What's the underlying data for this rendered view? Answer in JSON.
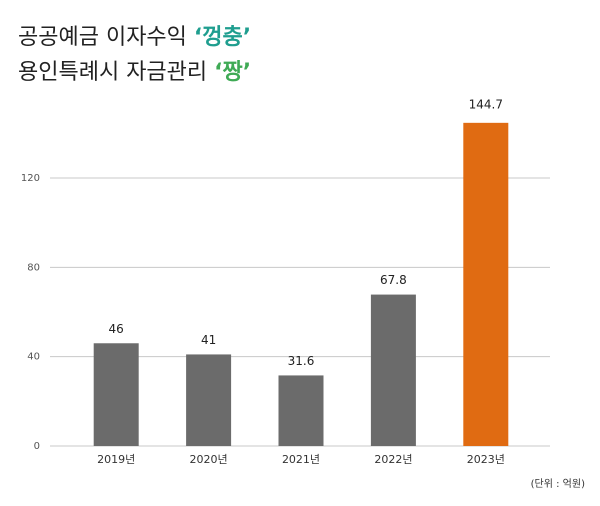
{
  "chart_data": {
    "type": "bar",
    "title_lines": [
      {
        "text": "공공예금 이자수익",
        "highlight": "‘껑충’",
        "highlight_color": "#1f9e8f"
      },
      {
        "text": "용인특례시 자금관리",
        "highlight": "‘짱’",
        "highlight_color": "#3faa55"
      }
    ],
    "unit_note": "(단위 : 억원)",
    "categories": [
      "2019년",
      "2020년",
      "2021년",
      "2022년",
      "2023년"
    ],
    "values": [
      46,
      41,
      31.6,
      67.8,
      144.7
    ],
    "colors": [
      "#6b6b6b",
      "#6b6b6b",
      "#6b6b6b",
      "#6b6b6b",
      "#e06b12"
    ],
    "ylim": [
      0,
      150
    ],
    "yticks": [
      0,
      40,
      80,
      120
    ],
    "grid": true
  }
}
